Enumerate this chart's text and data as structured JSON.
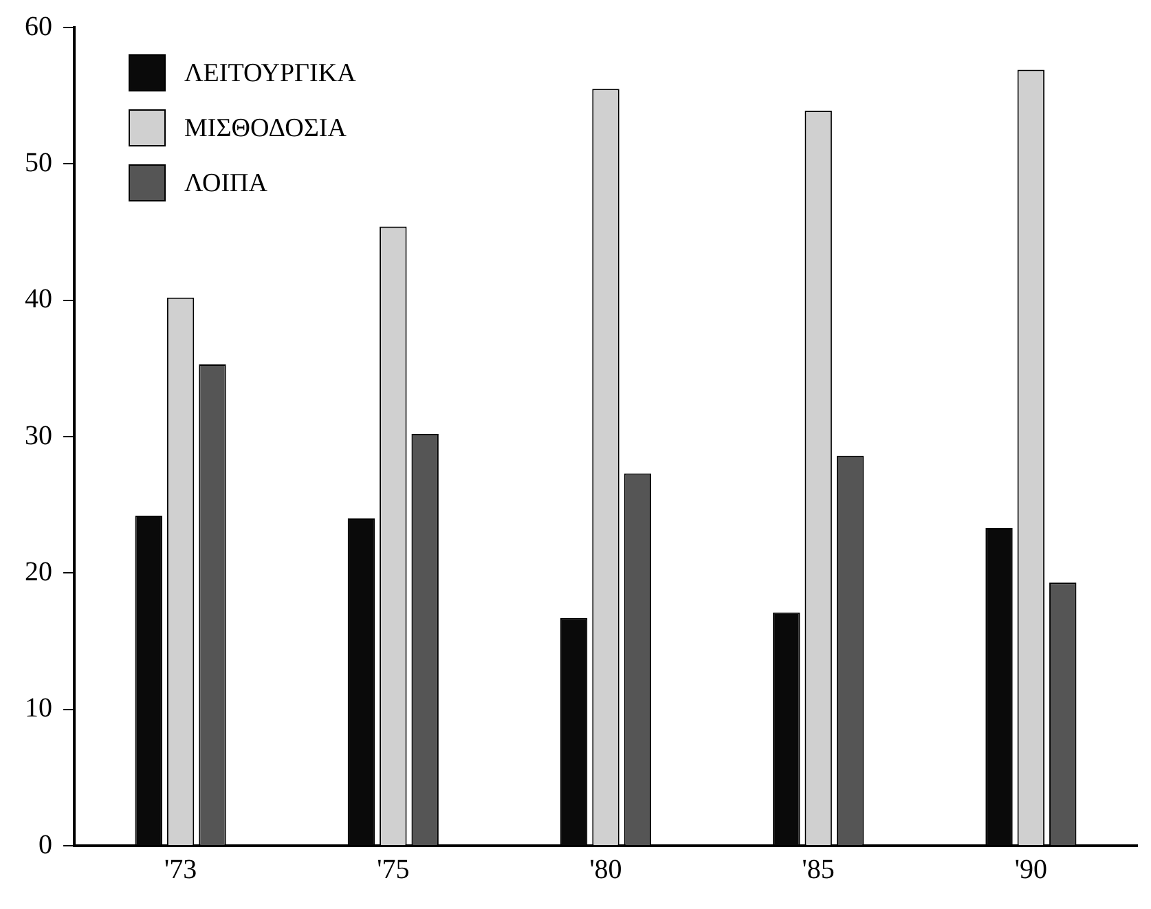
{
  "chart_data": {
    "type": "bar",
    "categories": [
      "'73",
      "'75",
      "'80",
      "'85",
      "'90"
    ],
    "series": [
      {
        "name": "ΛΕΙΤΟΥΡΓΙΚΑ",
        "color": "#0a0a0a",
        "values": [
          24.2,
          24.0,
          16.7,
          17.1,
          23.3
        ]
      },
      {
        "name": "ΜΙΣΘΟΔΟΣΙΑ",
        "color": "#d0d0d0",
        "values": [
          40.2,
          45.4,
          55.5,
          53.9,
          56.9
        ]
      },
      {
        "name": "ΛΟΙΠΑ",
        "color": "#555555",
        "values": [
          35.3,
          30.2,
          27.3,
          28.6,
          19.3
        ]
      }
    ],
    "ylim": [
      0,
      60
    ],
    "yticks": [
      0,
      10,
      20,
      30,
      40,
      50,
      60
    ],
    "grid": false,
    "legend": "top left"
  }
}
